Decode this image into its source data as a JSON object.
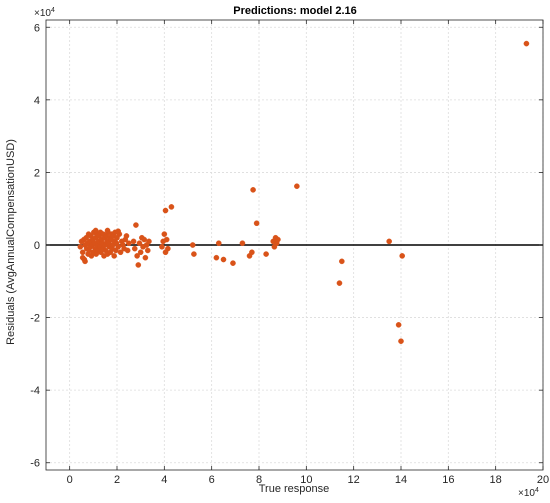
{
  "chart_data": {
    "type": "scatter",
    "title": "Predictions: model 2.16",
    "xlabel": "True response",
    "ylabel": "Residuals (AvgAnnualCompensationUSD)",
    "xlim": [
      -1,
      20
    ],
    "ylim": [
      -6.2,
      6.2
    ],
    "x_ticks": [
      0,
      2,
      4,
      6,
      8,
      10,
      12,
      14,
      16,
      18,
      20
    ],
    "x_tick_labels": [
      "0",
      "2",
      "4",
      "6",
      "8",
      "10",
      "12",
      "14",
      "16",
      "18",
      "20"
    ],
    "y_ticks": [
      -6,
      -4,
      -2,
      0,
      2,
      4,
      6
    ],
    "y_tick_labels": [
      "-6",
      "-4",
      "-2",
      "0",
      "2",
      "4",
      "6"
    ],
    "x_exponent": {
      "base": "×10",
      "power": "4"
    },
    "y_exponent": {
      "base": "×10",
      "power": "4"
    },
    "grid": true,
    "reference_line_y": 0,
    "marker_color": "#D95319",
    "line_color": "#000000",
    "points": [
      [
        0.45,
        -0.05
      ],
      [
        0.5,
        0.1
      ],
      [
        0.55,
        -0.2
      ],
      [
        0.6,
        0.15
      ],
      [
        0.62,
        -0.4
      ],
      [
        0.65,
        0.0
      ],
      [
        0.7,
        0.2
      ],
      [
        0.72,
        -0.1
      ],
      [
        0.75,
        0.05
      ],
      [
        0.78,
        -0.25
      ],
      [
        0.8,
        0.3
      ],
      [
        0.82,
        -0.15
      ],
      [
        0.85,
        0.1
      ],
      [
        0.88,
        -0.05
      ],
      [
        0.9,
        0.25
      ],
      [
        0.92,
        -0.3
      ],
      [
        0.95,
        0.0
      ],
      [
        0.98,
        0.15
      ],
      [
        1.0,
        -0.2
      ],
      [
        1.02,
        0.35
      ],
      [
        1.05,
        0.05
      ],
      [
        1.08,
        -0.1
      ],
      [
        1.1,
        0.2
      ],
      [
        1.12,
        -0.25
      ],
      [
        1.15,
        0.3
      ],
      [
        1.18,
        0.0
      ],
      [
        1.2,
        -0.15
      ],
      [
        1.22,
        0.1
      ],
      [
        1.25,
        0.25
      ],
      [
        1.28,
        -0.05
      ],
      [
        1.3,
        0.35
      ],
      [
        1.32,
        -0.2
      ],
      [
        1.35,
        0.15
      ],
      [
        1.38,
        0.05
      ],
      [
        1.4,
        -0.1
      ],
      [
        1.42,
        0.3
      ],
      [
        1.45,
        -0.3
      ],
      [
        1.48,
        0.2
      ],
      [
        1.5,
        0.0
      ],
      [
        1.52,
        -0.15
      ],
      [
        1.55,
        0.25
      ],
      [
        1.58,
        0.1
      ],
      [
        1.6,
        -0.25
      ],
      [
        1.62,
        0.35
      ],
      [
        1.65,
        0.05
      ],
      [
        1.68,
        -0.05
      ],
      [
        1.7,
        0.2
      ],
      [
        1.72,
        -0.2
      ],
      [
        1.75,
        0.15
      ],
      [
        1.78,
        0.3
      ],
      [
        1.8,
        -0.1
      ],
      [
        1.82,
        0.0
      ],
      [
        1.85,
        0.25
      ],
      [
        1.88,
        -0.3
      ],
      [
        1.9,
        0.1
      ],
      [
        1.92,
        0.35
      ],
      [
        1.95,
        -0.15
      ],
      [
        1.98,
        0.05
      ],
      [
        2.0,
        0.2
      ],
      [
        2.05,
        -0.05
      ],
      [
        2.1,
        0.3
      ],
      [
        2.15,
        -0.2
      ],
      [
        2.2,
        0.1
      ],
      [
        2.25,
        0.0
      ],
      [
        2.3,
        -0.1
      ],
      [
        2.35,
        0.15
      ],
      [
        2.4,
        0.25
      ],
      [
        2.45,
        -0.15
      ],
      [
        2.5,
        0.05
      ],
      [
        0.55,
        -0.35
      ],
      [
        0.65,
        -0.45
      ],
      [
        1.1,
        0.4
      ],
      [
        1.6,
        0.4
      ],
      [
        2.05,
        0.38
      ],
      [
        2.7,
        0.1
      ],
      [
        2.75,
        -0.1
      ],
      [
        2.8,
        0.55
      ],
      [
        2.85,
        -0.3
      ],
      [
        2.9,
        -0.55
      ],
      [
        2.95,
        0.05
      ],
      [
        3.0,
        -0.2
      ],
      [
        3.05,
        0.2
      ],
      [
        3.1,
        -0.05
      ],
      [
        3.15,
        0.15
      ],
      [
        3.2,
        -0.35
      ],
      [
        3.25,
        0.0
      ],
      [
        3.3,
        -0.15
      ],
      [
        3.35,
        0.1
      ],
      [
        3.9,
        -0.05
      ],
      [
        3.95,
        0.1
      ],
      [
        4.0,
        0.3
      ],
      [
        4.05,
        -0.2
      ],
      [
        4.1,
        0.15
      ],
      [
        4.15,
        -0.1
      ],
      [
        4.05,
        0.95
      ],
      [
        4.3,
        1.05
      ],
      [
        5.2,
        0.0
      ],
      [
        5.25,
        -0.25
      ],
      [
        6.2,
        -0.35
      ],
      [
        6.3,
        0.05
      ],
      [
        6.5,
        -0.4
      ],
      [
        6.9,
        -0.5
      ],
      [
        7.3,
        0.05
      ],
      [
        7.6,
        -0.3
      ],
      [
        7.7,
        -0.2
      ],
      [
        7.75,
        1.52
      ],
      [
        7.9,
        0.6
      ],
      [
        8.3,
        -0.25
      ],
      [
        8.6,
        0.1
      ],
      [
        8.65,
        -0.05
      ],
      [
        8.7,
        0.2
      ],
      [
        8.75,
        0.05
      ],
      [
        8.8,
        0.15
      ],
      [
        9.6,
        1.62
      ],
      [
        11.4,
        -1.05
      ],
      [
        11.5,
        -0.45
      ],
      [
        13.5,
        0.1
      ],
      [
        13.9,
        -2.2
      ],
      [
        14.0,
        -2.65
      ],
      [
        14.05,
        -0.3
      ],
      [
        19.3,
        5.55
      ]
    ]
  }
}
